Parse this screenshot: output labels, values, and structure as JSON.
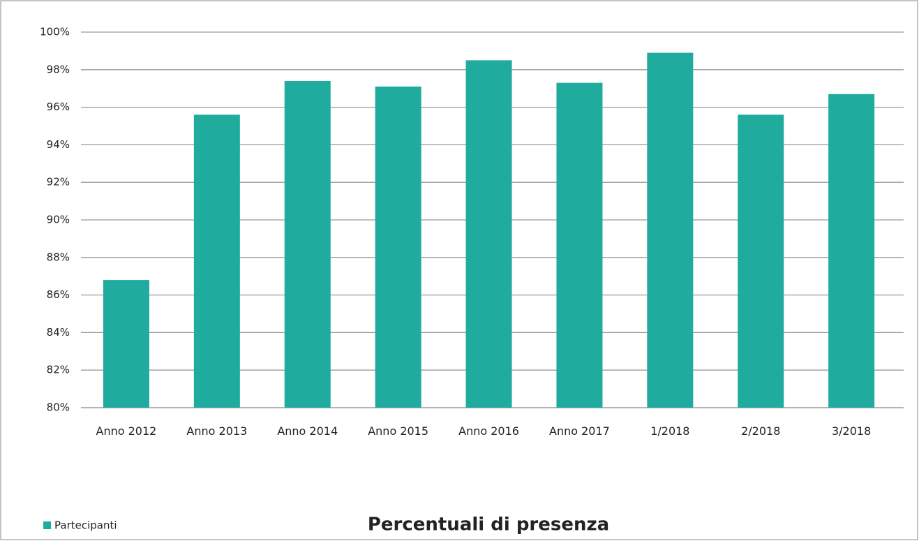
{
  "chart_data": {
    "type": "bar",
    "title": "Percentuali di presenza",
    "categories": [
      "Anno 2012",
      "Anno 2013",
      "Anno 2014",
      "Anno 2015",
      "Anno 2016",
      "Anno 2017",
      "1/2018",
      "2/2018",
      "3/2018"
    ],
    "series": [
      {
        "name": "Partecipanti",
        "color": "#20ab9f",
        "values": [
          86.8,
          95.6,
          97.4,
          97.1,
          98.5,
          97.3,
          98.9,
          95.6,
          96.7
        ]
      }
    ],
    "ylim": [
      80,
      100
    ],
    "yticks": [
      {
        "value": 80,
        "label": "80%"
      },
      {
        "value": 82,
        "label": "82%"
      },
      {
        "value": 84,
        "label": "84%"
      },
      {
        "value": 86,
        "label": "86%"
      },
      {
        "value": 88,
        "label": "88%"
      },
      {
        "value": 90,
        "label": "90%"
      },
      {
        "value": 92,
        "label": "92%"
      },
      {
        "value": 94,
        "label": "94%"
      },
      {
        "value": 96,
        "label": "96%"
      },
      {
        "value": 98,
        "label": "98%"
      },
      {
        "value": 100,
        "label": "100%"
      }
    ],
    "grid": true,
    "legend": "bottom-left"
  }
}
